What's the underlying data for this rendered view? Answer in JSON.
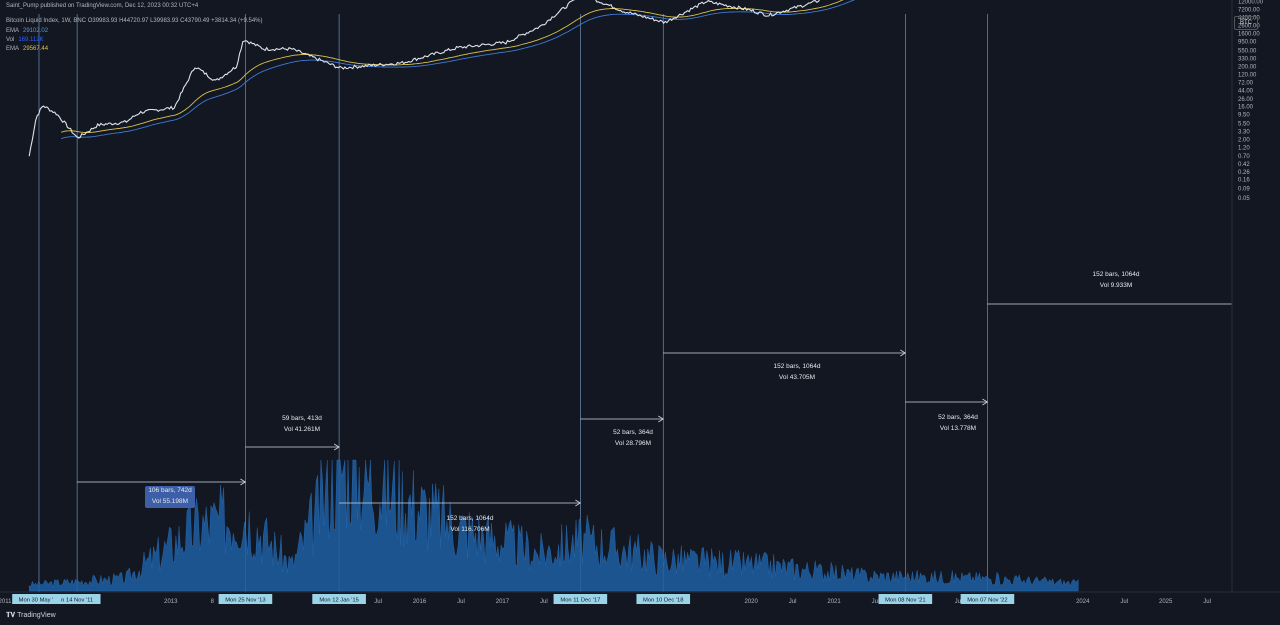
{
  "publisher_line": "Saint_Pump published on TradingView.com, Dec 12, 2023 00:32 UTC+4",
  "ohlc_line": "Bitcoin Liquid Index, 1W, BNC  O39983.93  H44720.97  L39983.93  C43790.49  +3814.34 (+9.54%)",
  "indicators": [
    {
      "name": "EMA",
      "value": "29102.02",
      "color": "#5b9bd5"
    },
    {
      "name": "Vol",
      "value": "169.112K",
      "color": "#2962ff"
    },
    {
      "name": "EMA",
      "value": "29567.44",
      "color": "#e0c341"
    }
  ],
  "symbol_badge": "BTC",
  "brand": "TradingView",
  "colors": {
    "background": "#131722",
    "candle": "#e0e3eb",
    "ema_blue": "#3d7ad6",
    "ema_yellow": "#d8c34a",
    "volume": "#1e5fa3",
    "vline": "#6f8fb5",
    "arrow": "#d1d4dc",
    "date_label_bg": "#9bd4e8",
    "price_label_bg": "#d1d4dc"
  },
  "chart_data": {
    "type": "line",
    "title": "Bitcoin Liquid Index, 1W, BNC",
    "y_scale": "log",
    "ylim": [
      0.04,
      1200000
    ],
    "current_price": "43790.49",
    "y_ticks": [
      "1200000.00",
      "720000.00",
      "440000.00",
      "260000.00",
      "160000.00",
      "95000.00",
      "55000.00",
      "33000.00",
      "20000.00",
      "12000.00",
      "7200.00",
      "4400.00",
      "2600.00",
      "1600.00",
      "950.00",
      "550.00",
      "330.00",
      "200.00",
      "120.00",
      "72.00",
      "44.00",
      "26.00",
      "16.00",
      "9.50",
      "5.50",
      "3.30",
      "2.00",
      "1.20",
      "0.70",
      "0.42",
      "0.26",
      "0.16",
      "0.09",
      "0.05"
    ],
    "x_ticks": [
      "2011",
      "Jul",
      "2013",
      "8",
      "Jul",
      "2016",
      "Jul",
      "2017",
      "Jul",
      "2020",
      "Jul",
      "2021",
      "Jul",
      "Jul",
      "2024",
      "Jul",
      "2025",
      "Jul"
    ],
    "highlighted_dates": [
      "Mon 30 May '11",
      "n 14 Nov '11",
      "Mon 25 Nov '13",
      "Mon 12 Jan '15",
      "Mon 11 Dec '17",
      "Mon 10 Dec '18",
      "Mon 08 Nov '21",
      "Mon 07 Nov '22"
    ],
    "price_series": [
      {
        "x": "2011-04",
        "y": 0.7
      },
      {
        "x": "2011-05",
        "y": 8
      },
      {
        "x": "2011-06",
        "y": 17
      },
      {
        "x": "2011-08",
        "y": 10
      },
      {
        "x": "2011-11",
        "y": 2.2
      },
      {
        "x": "2012-02",
        "y": 5
      },
      {
        "x": "2012-06",
        "y": 6
      },
      {
        "x": "2012-08",
        "y": 11
      },
      {
        "x": "2013-01",
        "y": 15
      },
      {
        "x": "2013-04",
        "y": 200
      },
      {
        "x": "2013-07",
        "y": 80
      },
      {
        "x": "2013-10",
        "y": 200
      },
      {
        "x": "2013-11",
        "y": 1100
      },
      {
        "x": "2014-02",
        "y": 600
      },
      {
        "x": "2014-06",
        "y": 600
      },
      {
        "x": "2015-01",
        "y": 180
      },
      {
        "x": "2015-10",
        "y": 250
      },
      {
        "x": "2016-06",
        "y": 650
      },
      {
        "x": "2017-01",
        "y": 900
      },
      {
        "x": "2017-06",
        "y": 2500
      },
      {
        "x": "2017-12",
        "y": 19000
      },
      {
        "x": "2018-06",
        "y": 6500
      },
      {
        "x": "2018-12",
        "y": 3200
      },
      {
        "x": "2019-06",
        "y": 12000
      },
      {
        "x": "2019-12",
        "y": 7200
      },
      {
        "x": "2020-03",
        "y": 5000
      },
      {
        "x": "2020-10",
        "y": 12000
      },
      {
        "x": "2021-04",
        "y": 60000
      },
      {
        "x": "2021-07",
        "y": 31000
      },
      {
        "x": "2021-11",
        "y": 68000
      },
      {
        "x": "2022-06",
        "y": 20000
      },
      {
        "x": "2022-11",
        "y": 16000
      },
      {
        "x": "2023-03",
        "y": 26000
      },
      {
        "x": "2023-10",
        "y": 30000
      },
      {
        "x": "2023-12",
        "y": 43790
      }
    ],
    "volume_series": [
      {
        "x": "2011-04",
        "y": 0.05
      },
      {
        "x": "2012-06",
        "y": 0.1
      },
      {
        "x": "2013-04",
        "y": 0.5
      },
      {
        "x": "2013-11",
        "y": 0.6
      },
      {
        "x": "2014-06",
        "y": 0.2
      },
      {
        "x": "2015-01",
        "y": 1.0
      },
      {
        "x": "2016-06",
        "y": 0.5
      },
      {
        "x": "2017-06",
        "y": 0.3
      },
      {
        "x": "2017-12",
        "y": 0.4
      },
      {
        "x": "2018-12",
        "y": 0.25
      },
      {
        "x": "2020-03",
        "y": 0.2
      },
      {
        "x": "2021-05",
        "y": 0.12
      },
      {
        "x": "2022-11",
        "y": 0.1
      },
      {
        "x": "2023-12",
        "y": 0.06
      }
    ],
    "measurements": [
      {
        "label": "106 bars, 742d",
        "vol": "Vol 55.198M",
        "highlighted": true
      },
      {
        "label": "59 bars, 413d",
        "vol": "Vol 41.261M"
      },
      {
        "label": "152 bars, 1064d",
        "vol": "Vol 116.706M"
      },
      {
        "label": "52 bars, 364d",
        "vol": "Vol 28.796M"
      },
      {
        "label": "152 bars, 1064d",
        "vol": "Vol 43.705M"
      },
      {
        "label": "52 bars, 364d",
        "vol": "Vol 13.778M"
      },
      {
        "label": "152 bars, 1064d",
        "vol": "Vol 9.933M"
      }
    ]
  }
}
